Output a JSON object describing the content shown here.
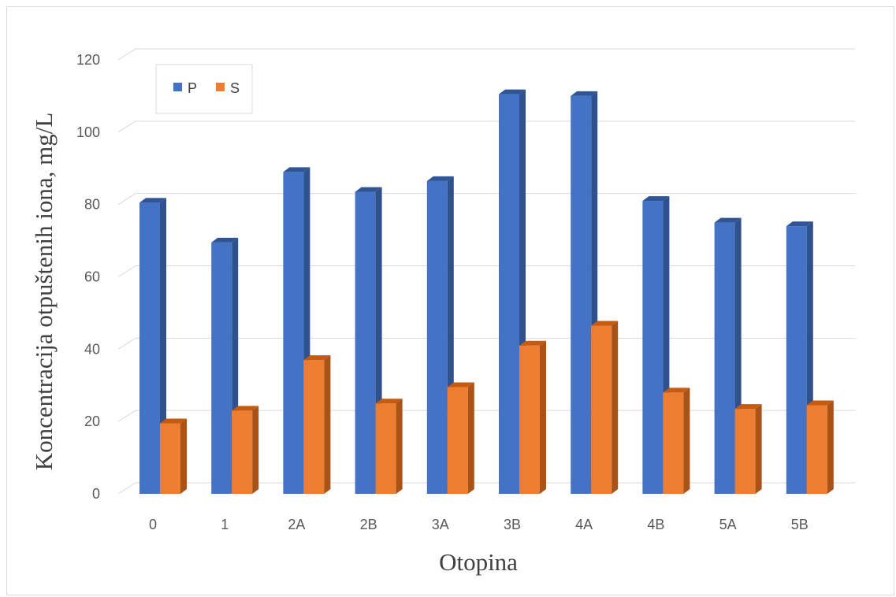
{
  "chart_data": {
    "type": "bar",
    "categories": [
      "0",
      "1",
      "2A",
      "2B",
      "3A",
      "3B",
      "4A",
      "4B",
      "5A",
      "5B"
    ],
    "series": [
      {
        "name": "P",
        "values": [
          80.5,
          69.5,
          89,
          83.5,
          86.5,
          110.5,
          110,
          81,
          75,
          74
        ],
        "color": "#4472C4",
        "side": "#2F528F",
        "top": "#2F5597"
      },
      {
        "name": "S",
        "values": [
          19.5,
          23,
          37,
          25,
          29.5,
          41,
          46.5,
          28,
          23.5,
          24.5
        ],
        "color": "#ED7D31",
        "side": "#A95319",
        "top": "#C55A11"
      }
    ],
    "xlabel": "Otopina",
    "ylabel": "Koncentracija otpuštenih iona, mg/L",
    "yticks": [
      "0",
      "20",
      "40",
      "60",
      "80",
      "100",
      "120"
    ],
    "ylim": [
      0,
      120
    ],
    "grid": true,
    "legend_position": "top-left",
    "style": "3d-clustered-column"
  }
}
